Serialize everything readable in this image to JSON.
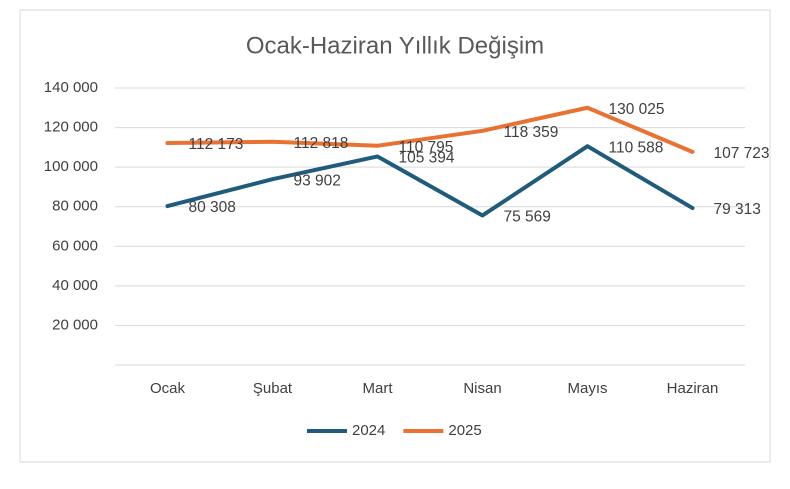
{
  "chart_data": {
    "type": "line",
    "title": "Ocak-Haziran Yıllık Değişim",
    "categories": [
      "Ocak",
      "Şubat",
      "Mart",
      "Nisan",
      "Mayıs",
      "Haziran"
    ],
    "series": [
      {
        "name": "2024",
        "color": "#1f5c7b",
        "values": [
          80308,
          93902,
          105394,
          75569,
          110588,
          79313
        ],
        "value_labels": [
          "80 308",
          "93 902",
          "105 394",
          "75 569",
          "110 588",
          "79 313"
        ]
      },
      {
        "name": "2025",
        "color": "#e97132",
        "values": [
          112173,
          112818,
          110795,
          118359,
          130025,
          107723
        ],
        "value_labels": [
          "112 173",
          "112 818",
          "110 795",
          "118 359",
          "130 025",
          "107 723"
        ]
      }
    ],
    "ylim": [
      0,
      140000
    ],
    "yticks": [
      {
        "value": 20000,
        "label": "20 000"
      },
      {
        "value": 40000,
        "label": "40 000"
      },
      {
        "value": 60000,
        "label": "60 000"
      },
      {
        "value": 80000,
        "label": "80 000"
      },
      {
        "value": 100000,
        "label": "100 000"
      },
      {
        "value": 120000,
        "label": "120 000"
      },
      {
        "value": 140000,
        "label": "140 000"
      }
    ],
    "grid": true,
    "legend": "bottom"
  }
}
